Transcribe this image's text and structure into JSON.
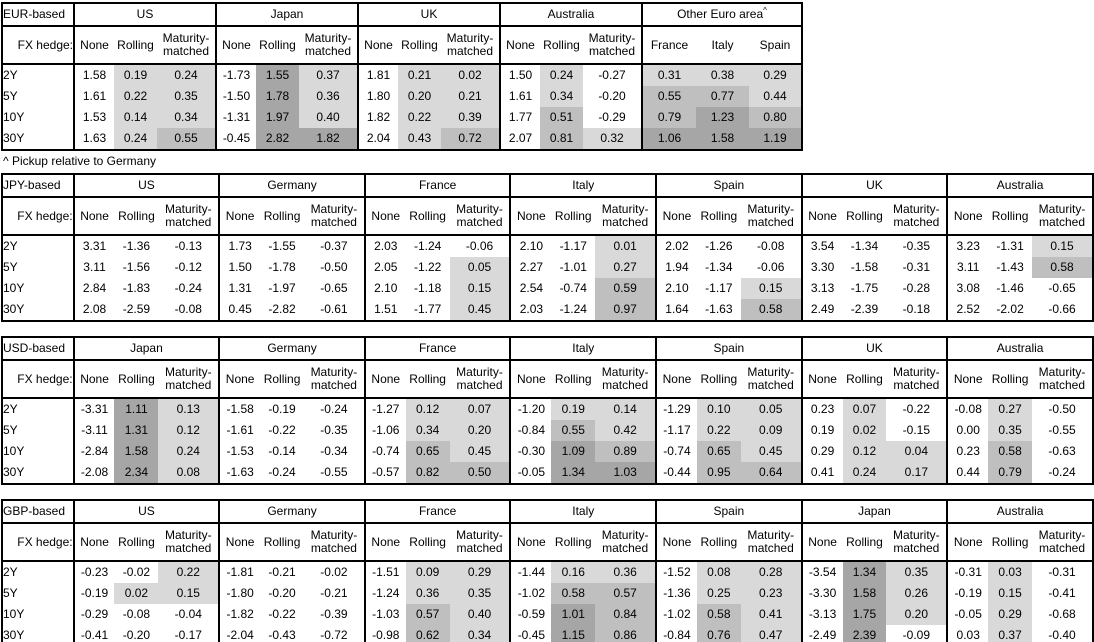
{
  "fx_hedge_label": "FX hedge:",
  "tenors": [
    "2Y",
    "5Y",
    "10Y",
    "30Y"
  ],
  "hedge_columns": [
    "None",
    "Rolling",
    "Maturity-matched"
  ],
  "footnote": "^ Pickup relative to Germany",
  "heatmap": {
    "colors": [
      "#ffffff",
      "#d9d9d9",
      "#bfbfbf",
      "#a6a6a6"
    ],
    "thresholds": [
      0,
      0.5,
      1.0
    ],
    "unshaded_column": "None",
    "rule": "cells in non-None columns shaded by value: <0 white, 0-0.5 light, 0.5-1 medium, >=1 dark"
  },
  "tables": [
    {
      "id": "eur",
      "base": "EUR-based",
      "groups": [
        {
          "name": "US",
          "rows": [
            [
              "1.58",
              "0.19",
              "0.24"
            ],
            [
              "1.61",
              "0.22",
              "0.35"
            ],
            [
              "1.53",
              "0.14",
              "0.34"
            ],
            [
              "1.63",
              "0.24",
              "0.55"
            ]
          ]
        },
        {
          "name": "Japan",
          "rows": [
            [
              "-1.73",
              "1.55",
              "0.37"
            ],
            [
              "-1.50",
              "1.78",
              "0.36"
            ],
            [
              "-1.31",
              "1.97",
              "0.40"
            ],
            [
              "-0.45",
              "2.82",
              "1.82"
            ]
          ]
        },
        {
          "name": "UK",
          "rows": [
            [
              "1.81",
              "0.21",
              "0.02"
            ],
            [
              "1.80",
              "0.20",
              "0.21"
            ],
            [
              "1.82",
              "0.22",
              "0.39"
            ],
            [
              "2.04",
              "0.43",
              "0.72"
            ]
          ]
        },
        {
          "name": "Australia",
          "rows": [
            [
              "1.50",
              "0.24",
              "-0.27"
            ],
            [
              "1.61",
              "0.34",
              "-0.20"
            ],
            [
              "1.77",
              "0.51",
              "-0.29"
            ],
            [
              "2.07",
              "0.81",
              "0.32"
            ]
          ]
        },
        {
          "name": "Other Euro area",
          "sup": "^",
          "cols": [
            "France",
            "Italy",
            "Spain"
          ],
          "rows": [
            [
              "0.31",
              "0.38",
              "0.29"
            ],
            [
              "0.55",
              "0.77",
              "0.44"
            ],
            [
              "0.79",
              "1.23",
              "0.80"
            ],
            [
              "1.06",
              "1.58",
              "1.19"
            ]
          ]
        }
      ]
    },
    {
      "id": "jpy",
      "base": "JPY-based",
      "groups": [
        {
          "name": "US",
          "rows": [
            [
              "3.31",
              "-1.36",
              "-0.13"
            ],
            [
              "3.11",
              "-1.56",
              "-0.12"
            ],
            [
              "2.84",
              "-1.83",
              "-0.24"
            ],
            [
              "2.08",
              "-2.59",
              "-0.08"
            ]
          ]
        },
        {
          "name": "Germany",
          "rows": [
            [
              "1.73",
              "-1.55",
              "-0.37"
            ],
            [
              "1.50",
              "-1.78",
              "-0.50"
            ],
            [
              "1.31",
              "-1.97",
              "-0.65"
            ],
            [
              "0.45",
              "-2.82",
              "-0.61"
            ]
          ]
        },
        {
          "name": "France",
          "rows": [
            [
              "2.03",
              "-1.24",
              "-0.06"
            ],
            [
              "2.05",
              "-1.22",
              "0.05"
            ],
            [
              "2.10",
              "-1.18",
              "0.15"
            ],
            [
              "1.51",
              "-1.77",
              "0.45"
            ]
          ]
        },
        {
          "name": "Italy",
          "rows": [
            [
              "2.10",
              "-1.17",
              "0.01"
            ],
            [
              "2.27",
              "-1.01",
              "0.27"
            ],
            [
              "2.54",
              "-0.74",
              "0.59"
            ],
            [
              "2.03",
              "-1.24",
              "0.97"
            ]
          ]
        },
        {
          "name": "Spain",
          "rows": [
            [
              "2.02",
              "-1.26",
              "-0.08"
            ],
            [
              "1.94",
              "-1.34",
              "-0.06"
            ],
            [
              "2.10",
              "-1.17",
              "0.15"
            ],
            [
              "1.64",
              "-1.63",
              "0.58"
            ]
          ]
        },
        {
          "name": "UK",
          "rows": [
            [
              "3.54",
              "-1.34",
              "-0.35"
            ],
            [
              "3.30",
              "-1.58",
              "-0.31"
            ],
            [
              "3.13",
              "-1.75",
              "-0.28"
            ],
            [
              "2.49",
              "-2.39",
              "-0.18"
            ]
          ]
        },
        {
          "name": "Australia",
          "rows": [
            [
              "3.23",
              "-1.31",
              "0.15"
            ],
            [
              "3.11",
              "-1.43",
              "0.58"
            ],
            [
              "3.08",
              "-1.46",
              "-0.65"
            ],
            [
              "2.52",
              "-2.02",
              "-0.66"
            ]
          ]
        }
      ]
    },
    {
      "id": "usd",
      "base": "USD-based",
      "groups": [
        {
          "name": "Japan",
          "rows": [
            [
              "-3.31",
              "1.11",
              "0.13"
            ],
            [
              "-3.11",
              "1.31",
              "0.12"
            ],
            [
              "-2.84",
              "1.58",
              "0.24"
            ],
            [
              "-2.08",
              "2.34",
              "0.08"
            ]
          ]
        },
        {
          "name": "Germany",
          "rows": [
            [
              "-1.58",
              "-0.19",
              "-0.24"
            ],
            [
              "-1.61",
              "-0.22",
              "-0.35"
            ],
            [
              "-1.53",
              "-0.14",
              "-0.34"
            ],
            [
              "-1.63",
              "-0.24",
              "-0.55"
            ]
          ]
        },
        {
          "name": "France",
          "rows": [
            [
              "-1.27",
              "0.12",
              "0.07"
            ],
            [
              "-1.06",
              "0.34",
              "0.20"
            ],
            [
              "-0.74",
              "0.65",
              "0.45"
            ],
            [
              "-0.57",
              "0.82",
              "0.50"
            ]
          ]
        },
        {
          "name": "Italy",
          "rows": [
            [
              "-1.20",
              "0.19",
              "0.14"
            ],
            [
              "-0.84",
              "0.55",
              "0.42"
            ],
            [
              "-0.30",
              "1.09",
              "0.89"
            ],
            [
              "-0.05",
              "1.34",
              "1.03"
            ]
          ]
        },
        {
          "name": "Spain",
          "rows": [
            [
              "-1.29",
              "0.10",
              "0.05"
            ],
            [
              "-1.17",
              "0.22",
              "0.09"
            ],
            [
              "-0.74",
              "0.65",
              "0.45"
            ],
            [
              "-0.44",
              "0.95",
              "0.64"
            ]
          ]
        },
        {
          "name": "UK",
          "rows": [
            [
              "0.23",
              "0.07",
              "-0.22"
            ],
            [
              "0.19",
              "0.02",
              "-0.15"
            ],
            [
              "0.29",
              "0.12",
              "0.04"
            ],
            [
              "0.41",
              "0.24",
              "0.17"
            ]
          ]
        },
        {
          "name": "Australia",
          "rows": [
            [
              "-0.08",
              "0.27",
              "-0.50"
            ],
            [
              "0.00",
              "0.35",
              "-0.55"
            ],
            [
              "0.23",
              "0.58",
              "-0.63"
            ],
            [
              "0.44",
              "0.79",
              "-0.24"
            ]
          ]
        }
      ]
    },
    {
      "id": "gbp",
      "base": "GBP-based",
      "groups": [
        {
          "name": "US",
          "rows": [
            [
              "-0.23",
              "-0.02",
              "0.22"
            ],
            [
              "-0.19",
              "0.02",
              "0.15"
            ],
            [
              "-0.29",
              "-0.08",
              "-0.04"
            ],
            [
              "-0.41",
              "-0.20",
              "-0.17"
            ]
          ]
        },
        {
          "name": "Germany",
          "rows": [
            [
              "-1.81",
              "-0.21",
              "-0.02"
            ],
            [
              "-1.80",
              "-0.20",
              "-0.21"
            ],
            [
              "-1.82",
              "-0.22",
              "-0.39"
            ],
            [
              "-2.04",
              "-0.43",
              "-0.72"
            ]
          ]
        },
        {
          "name": "France",
          "rows": [
            [
              "-1.51",
              "0.09",
              "0.29"
            ],
            [
              "-1.24",
              "0.36",
              "0.35"
            ],
            [
              "-1.03",
              "0.57",
              "0.40"
            ],
            [
              "-0.98",
              "0.62",
              "0.34"
            ]
          ]
        },
        {
          "name": "Italy",
          "rows": [
            [
              "-1.44",
              "0.16",
              "0.36"
            ],
            [
              "-1.02",
              "0.58",
              "0.57"
            ],
            [
              "-0.59",
              "1.01",
              "0.84"
            ],
            [
              "-0.45",
              "1.15",
              "0.86"
            ]
          ]
        },
        {
          "name": "Spain",
          "rows": [
            [
              "-1.52",
              "0.08",
              "0.28"
            ],
            [
              "-1.36",
              "0.25",
              "0.23"
            ],
            [
              "-1.02",
              "0.58",
              "0.41"
            ],
            [
              "-0.84",
              "0.76",
              "0.47"
            ]
          ]
        },
        {
          "name": "Japan",
          "rows": [
            [
              "-3.54",
              "1.34",
              "0.35"
            ],
            [
              "-3.30",
              "1.58",
              "0.26"
            ],
            [
              "-3.13",
              "1.75",
              "0.20"
            ],
            [
              "-2.49",
              "2.39",
              "-0.09"
            ]
          ]
        },
        {
          "name": "Australia",
          "rows": [
            [
              "-0.31",
              "0.03",
              "-0.31"
            ],
            [
              "-0.19",
              "0.15",
              "-0.41"
            ],
            [
              "-0.05",
              "0.29",
              "-0.68"
            ],
            [
              "0.03",
              "0.37",
              "-0.40"
            ]
          ]
        }
      ]
    }
  ]
}
